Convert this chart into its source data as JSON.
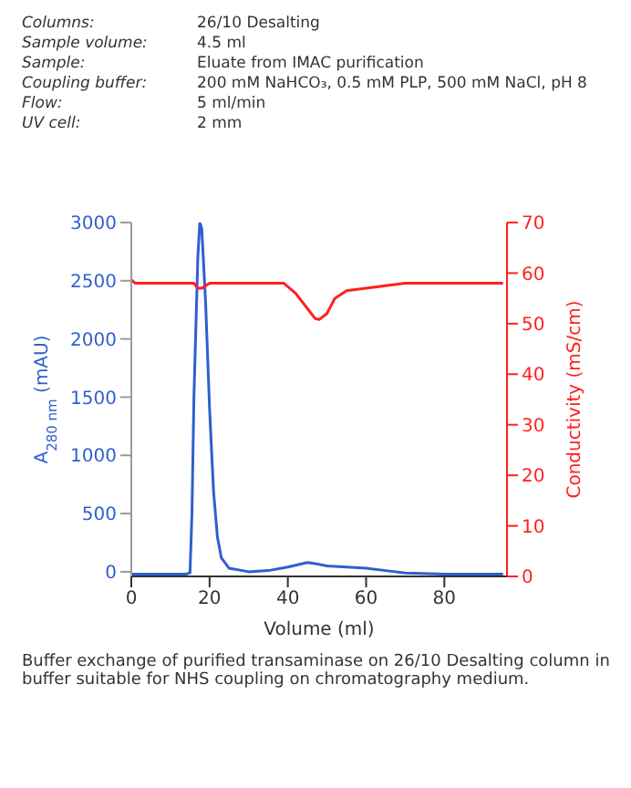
{
  "chart_data": {
    "type": "line",
    "xlabel": "Volume (ml)",
    "ylabel": "A$_{280 nm}$ (mAU)",
    "y2label": "Conductivity (mS/cm)",
    "xlim": [
      0,
      96
    ],
    "xticks": [
      0,
      20,
      40,
      60,
      80
    ],
    "ylim": [
      -40,
      3000
    ],
    "yticks": [
      0,
      500,
      1000,
      1500,
      2000,
      2500,
      3000
    ],
    "y2lim": [
      0,
      70
    ],
    "y2ticks": [
      0,
      10,
      20,
      30,
      40,
      50,
      60,
      70
    ],
    "marker": "none",
    "line_style": "solid",
    "series": [
      {
        "color": "#2f5fd0",
        "x": [
          0,
          14,
          15,
          15.5,
          16,
          17,
          17.5,
          18,
          19,
          20,
          21,
          22,
          23,
          25,
          30,
          35,
          40,
          45,
          47,
          50,
          55,
          60,
          65,
          70,
          80,
          95
        ],
        "values": [
          -20,
          -20,
          -10,
          500,
          1500,
          2700,
          3000,
          2950,
          2300,
          1400,
          700,
          300,
          120,
          30,
          0,
          10,
          40,
          80,
          70,
          50,
          40,
          30,
          10,
          -10,
          -20,
          -20
        ]
      },
      {
        "color": "#ff2020",
        "axis": "y2",
        "x": [
          0,
          1,
          16,
          17,
          18,
          20,
          30,
          39,
          42,
          45,
          47,
          48,
          50,
          52,
          55,
          60,
          70,
          95
        ],
        "values": [
          58.7,
          58,
          58,
          57,
          57,
          58,
          58,
          58,
          56,
          53,
          51,
          50.8,
          52,
          55,
          56.5,
          57,
          58,
          58
        ]
      }
    ],
    "annotations": [
      "Columns:",
      "26/10 Desalting",
      "Sample volume:",
      "4.5 ml",
      "Sample:",
      "Eluate from IMAC purification",
      "Coupling buffer:",
      "200 mM NaHCO₃, 0.5 mM PLP, 500 mM NaCl, pH 8",
      "Flow:",
      "5 ml/min",
      "UV cell:",
      "2 mm",
      "Buffer exchange of purified transaminase on 26/10 Desalting column in buffer suitable for NHS coupling on chromatography medium."
    ]
  }
}
